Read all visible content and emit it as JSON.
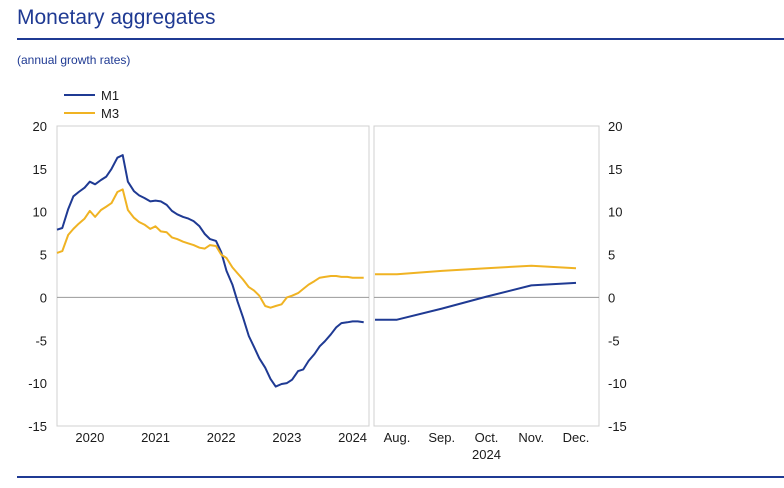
{
  "header": {
    "title": "Monetary aggregates",
    "subtitle": "(annual growth rates)"
  },
  "colors": {
    "M1": "#1f3a93",
    "M3": "#f0b323",
    "accent": "#1f3a93",
    "zero_line": "#9a9a9a",
    "panel_border": "#d0d0d0"
  },
  "chart_data": [
    {
      "type": "line",
      "panel": "left",
      "ylim": [
        -15,
        20
      ],
      "yticks": [
        20,
        15,
        10,
        5,
        0,
        -5,
        -10,
        -15
      ],
      "xlim": [
        2019.5,
        2024.25
      ],
      "xtick_labels": [
        {
          "label": "2020",
          "x": 2020.0
        },
        {
          "label": "2021",
          "x": 2021.0
        },
        {
          "label": "2022",
          "x": 2022.0
        },
        {
          "label": "2023",
          "x": 2023.0
        },
        {
          "label": "2024",
          "x": 2024.0
        }
      ],
      "series": [
        {
          "name": "M1",
          "x": [
            2019.5,
            2019.58,
            2019.67,
            2019.75,
            2019.83,
            2019.92,
            2020.0,
            2020.08,
            2020.17,
            2020.25,
            2020.33,
            2020.42,
            2020.5,
            2020.58,
            2020.67,
            2020.75,
            2020.83,
            2020.92,
            2021.0,
            2021.08,
            2021.17,
            2021.25,
            2021.33,
            2021.42,
            2021.5,
            2021.58,
            2021.67,
            2021.75,
            2021.83,
            2021.92,
            2022.0,
            2022.08,
            2022.17,
            2022.25,
            2022.33,
            2022.42,
            2022.5,
            2022.58,
            2022.67,
            2022.75,
            2022.83,
            2022.92,
            2023.0,
            2023.08,
            2023.17,
            2023.25,
            2023.33,
            2023.42,
            2023.5,
            2023.58,
            2023.67,
            2023.75,
            2023.83,
            2023.92,
            2024.0,
            2024.08,
            2024.17
          ],
          "values": [
            7.9,
            8.1,
            10.3,
            11.8,
            12.3,
            12.8,
            13.5,
            13.2,
            13.7,
            14.1,
            15.0,
            16.3,
            16.6,
            13.5,
            12.4,
            11.9,
            11.6,
            11.2,
            11.3,
            11.2,
            10.8,
            10.1,
            9.7,
            9.4,
            9.2,
            8.9,
            8.3,
            7.4,
            6.8,
            6.6,
            5.3,
            3.1,
            1.5,
            -0.5,
            -2.3,
            -4.5,
            -5.8,
            -7.1,
            -8.2,
            -9.5,
            -10.4,
            -10.1,
            -10.0,
            -9.6,
            -8.6,
            -8.4,
            -7.4,
            -6.6,
            -5.7,
            -5.1,
            -4.3,
            -3.5,
            -3.0,
            -2.9,
            -2.8,
            -2.8,
            -2.9
          ]
        },
        {
          "name": "M3",
          "x": [
            2019.5,
            2019.58,
            2019.67,
            2019.75,
            2019.83,
            2019.92,
            2020.0,
            2020.08,
            2020.17,
            2020.25,
            2020.33,
            2020.42,
            2020.5,
            2020.58,
            2020.67,
            2020.75,
            2020.83,
            2020.92,
            2021.0,
            2021.08,
            2021.17,
            2021.25,
            2021.33,
            2021.42,
            2021.5,
            2021.58,
            2021.67,
            2021.75,
            2021.83,
            2021.92,
            2022.0,
            2022.08,
            2022.17,
            2022.25,
            2022.33,
            2022.42,
            2022.5,
            2022.58,
            2022.67,
            2022.75,
            2022.83,
            2022.92,
            2023.0,
            2023.08,
            2023.17,
            2023.25,
            2023.33,
            2023.42,
            2023.5,
            2023.58,
            2023.67,
            2023.75,
            2023.83,
            2023.92,
            2024.0,
            2024.08,
            2024.17
          ],
          "values": [
            5.2,
            5.4,
            7.3,
            8.0,
            8.6,
            9.2,
            10.1,
            9.4,
            10.2,
            10.6,
            11.0,
            12.3,
            12.6,
            10.2,
            9.3,
            8.8,
            8.5,
            8.0,
            8.3,
            7.7,
            7.6,
            7.0,
            6.8,
            6.5,
            6.3,
            6.1,
            5.8,
            5.7,
            6.1,
            6.0,
            5.0,
            4.6,
            3.5,
            2.8,
            2.1,
            1.2,
            0.8,
            0.2,
            -1.0,
            -1.2,
            -1.0,
            -0.8,
            0.0,
            0.2,
            0.5,
            1.0,
            1.5,
            1.9,
            2.3,
            2.4,
            2.5,
            2.5,
            2.4,
            2.4,
            2.3,
            2.3,
            2.3
          ]
        }
      ]
    },
    {
      "type": "line",
      "panel": "right",
      "ylim": [
        -15,
        20
      ],
      "yticks": [
        20,
        15,
        10,
        5,
        0,
        -5,
        -10,
        -15
      ],
      "categories": [
        "Aug.",
        "Sep.",
        "Oct.",
        "Nov.",
        "Dec."
      ],
      "xlabel": "2024",
      "series": [
        {
          "name": "M1",
          "values": [
            -2.6,
            -1.3,
            0.1,
            1.4,
            1.7
          ]
        },
        {
          "name": "M3",
          "values": [
            2.7,
            3.1,
            3.4,
            3.7,
            3.4
          ]
        }
      ]
    }
  ]
}
